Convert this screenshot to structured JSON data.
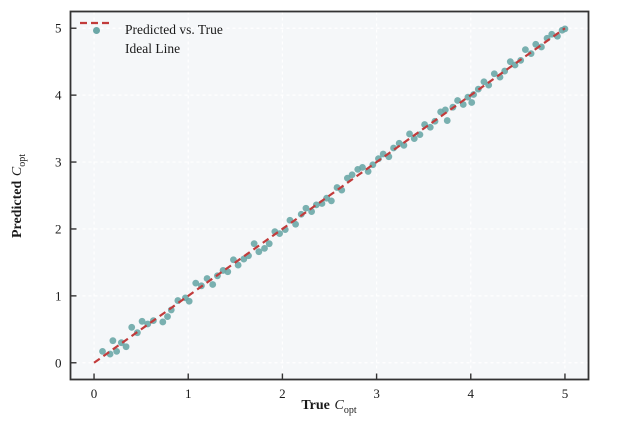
{
  "figure": {
    "background": "#ffffff",
    "plot_background": "#f5f7f9",
    "spine_color": "#333333",
    "grid_color": "#ffffff",
    "text_color": "#1a1a1a"
  },
  "legend": {
    "items": [
      {
        "label": "Predicted vs. True",
        "marker": "dot",
        "color": "#6ba7a7"
      },
      {
        "label": "Ideal Line",
        "marker": "dashed-line",
        "color": "#c23b3b"
      }
    ]
  },
  "axes": {
    "x": {
      "label_bold": "True",
      "label_var": "C",
      "label_sub": "opt"
    },
    "y": {
      "label_bold": "Predicted",
      "label_var": "C",
      "label_sub": "opt"
    }
  },
  "chart_data": {
    "type": "scatter",
    "title": "",
    "xlabel": "True C_opt",
    "ylabel": "Predicted C_opt",
    "xlim": [
      -0.25,
      5.25
    ],
    "ylim": [
      -0.25,
      5.25
    ],
    "x_ticks": [
      0,
      1,
      2,
      3,
      4,
      5
    ],
    "y_ticks": [
      0,
      1,
      2,
      3,
      4,
      5
    ],
    "grid": true,
    "grid_style": "dashed-white",
    "legend_position": "upper-left",
    "series": [
      {
        "name": "Predicted vs. True",
        "type": "scatter",
        "color": "#6ba7a7",
        "marker_radius": 3.4,
        "points": [
          [
            0.09,
            0.17
          ],
          [
            0.17,
            0.13
          ],
          [
            0.24,
            0.17
          ],
          [
            0.2,
            0.33
          ],
          [
            0.29,
            0.3
          ],
          [
            0.34,
            0.24
          ],
          [
            0.4,
            0.53
          ],
          [
            0.46,
            0.45
          ],
          [
            0.51,
            0.62
          ],
          [
            0.57,
            0.58
          ],
          [
            0.63,
            0.63
          ],
          [
            0.73,
            0.61
          ],
          [
            0.78,
            0.69
          ],
          [
            0.82,
            0.79
          ],
          [
            0.89,
            0.93
          ],
          [
            0.97,
            0.97
          ],
          [
            1.01,
            0.92
          ],
          [
            1.08,
            1.19
          ],
          [
            1.14,
            1.15
          ],
          [
            1.2,
            1.26
          ],
          [
            1.26,
            1.17
          ],
          [
            1.31,
            1.3
          ],
          [
            1.37,
            1.38
          ],
          [
            1.42,
            1.36
          ],
          [
            1.48,
            1.54
          ],
          [
            1.53,
            1.46
          ],
          [
            1.59,
            1.55
          ],
          [
            1.64,
            1.6
          ],
          [
            1.7,
            1.78
          ],
          [
            1.75,
            1.66
          ],
          [
            1.81,
            1.71
          ],
          [
            1.86,
            1.78
          ],
          [
            1.92,
            1.96
          ],
          [
            1.97,
            1.93
          ],
          [
            2.03,
            1.99
          ],
          [
            2.08,
            2.13
          ],
          [
            2.14,
            2.07
          ],
          [
            2.2,
            2.22
          ],
          [
            2.25,
            2.31
          ],
          [
            2.31,
            2.26
          ],
          [
            2.36,
            2.36
          ],
          [
            2.42,
            2.38
          ],
          [
            2.47,
            2.46
          ],
          [
            2.52,
            2.42
          ],
          [
            2.58,
            2.62
          ],
          [
            2.63,
            2.58
          ],
          [
            2.69,
            2.76
          ],
          [
            2.74,
            2.81
          ],
          [
            2.8,
            2.89
          ],
          [
            2.85,
            2.92
          ],
          [
            2.91,
            2.86
          ],
          [
            2.96,
            2.96
          ],
          [
            3.02,
            3.05
          ],
          [
            3.07,
            3.12
          ],
          [
            3.13,
            3.08
          ],
          [
            3.18,
            3.21
          ],
          [
            3.24,
            3.28
          ],
          [
            3.29,
            3.25
          ],
          [
            3.35,
            3.42
          ],
          [
            3.4,
            3.35
          ],
          [
            3.46,
            3.41
          ],
          [
            3.51,
            3.56
          ],
          [
            3.57,
            3.52
          ],
          [
            3.62,
            3.61
          ],
          [
            3.68,
            3.75
          ],
          [
            3.73,
            3.78
          ],
          [
            3.75,
            3.62
          ],
          [
            3.81,
            3.82
          ],
          [
            3.86,
            3.92
          ],
          [
            3.92,
            3.86
          ],
          [
            3.97,
            3.97
          ],
          [
            4.01,
            3.89
          ],
          [
            4.03,
            4.01
          ],
          [
            4.08,
            4.09
          ],
          [
            4.14,
            4.2
          ],
          [
            4.19,
            4.15
          ],
          [
            4.25,
            4.32
          ],
          [
            4.31,
            4.27
          ],
          [
            4.36,
            4.36
          ],
          [
            4.42,
            4.5
          ],
          [
            4.47,
            4.45
          ],
          [
            4.53,
            4.52
          ],
          [
            4.58,
            4.68
          ],
          [
            4.64,
            4.62
          ],
          [
            4.69,
            4.76
          ],
          [
            4.75,
            4.72
          ],
          [
            4.81,
            4.85
          ],
          [
            4.86,
            4.91
          ],
          [
            4.92,
            4.88
          ],
          [
            4.97,
            4.97
          ],
          [
            5.0,
            4.99
          ]
        ]
      },
      {
        "name": "Ideal Line",
        "type": "line",
        "style": "dashed",
        "color": "#c23b3b",
        "width": 2.2,
        "points": [
          [
            0,
            0
          ],
          [
            5,
            5
          ]
        ]
      }
    ]
  }
}
